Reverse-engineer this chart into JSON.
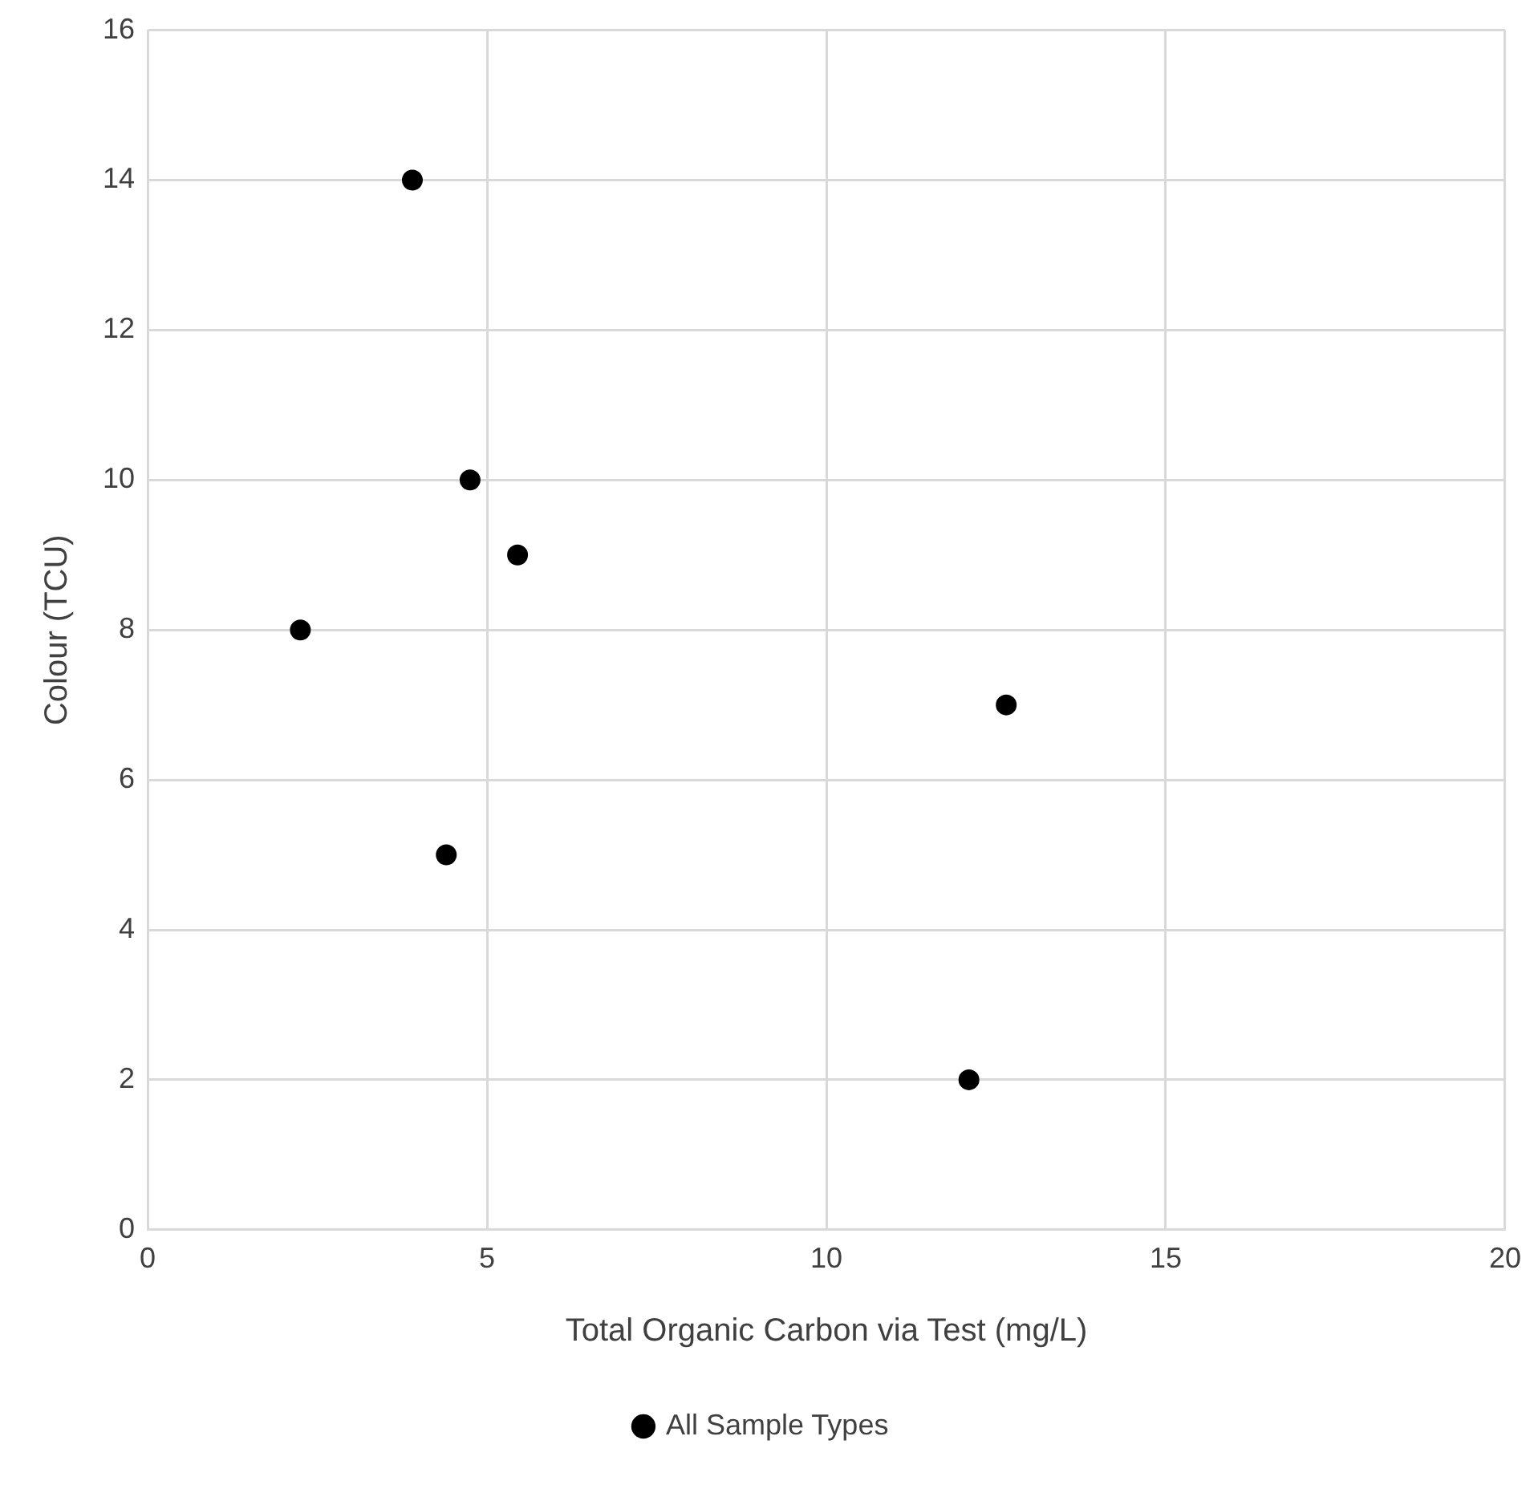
{
  "chart_data": {
    "type": "scatter",
    "xlabel": "Total Organic Carbon via Test (mg/L)",
    "ylabel": "Colour (TCU)",
    "series": [
      {
        "name": "All Sample Types",
        "color": "#000000",
        "x": [
          3.9,
          2.25,
          4.75,
          5.45,
          4.4,
          12.65,
          12.1
        ],
        "values": [
          14,
          8,
          10,
          9,
          5,
          7,
          2
        ]
      }
    ],
    "xlim": [
      0,
      20
    ],
    "xticks": [
      0,
      5,
      10,
      15,
      20
    ],
    "ylim": [
      0,
      16
    ],
    "yticks": [
      0,
      2,
      4,
      6,
      8,
      10,
      12,
      14,
      16
    ],
    "grid": true,
    "legend": "bottom",
    "marker": "circle"
  }
}
